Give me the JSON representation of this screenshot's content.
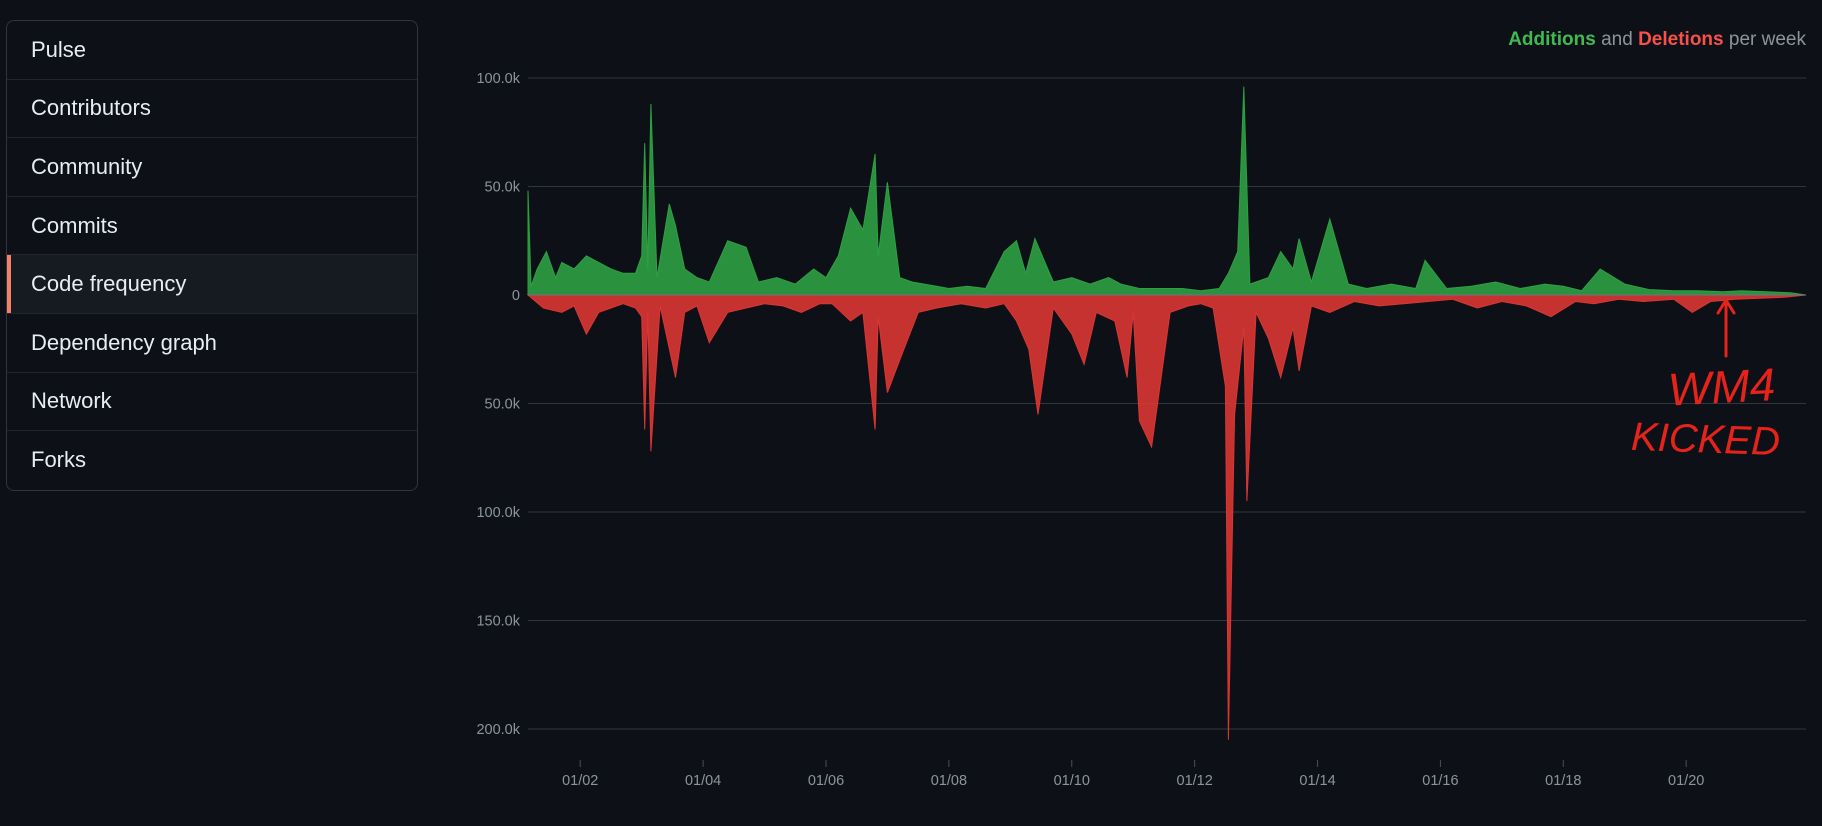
{
  "sidebar": {
    "items": [
      {
        "label": "Pulse",
        "active": false
      },
      {
        "label": "Contributors",
        "active": false
      },
      {
        "label": "Community",
        "active": false
      },
      {
        "label": "Commits",
        "active": false
      },
      {
        "label": "Code frequency",
        "active": true
      },
      {
        "label": "Dependency graph",
        "active": false
      },
      {
        "label": "Network",
        "active": false
      },
      {
        "label": "Forks",
        "active": false
      }
    ]
  },
  "legend": {
    "additions_label": "Additions",
    "and_text": "and",
    "deletions_label": "Deletions",
    "suffix": "per week"
  },
  "annotation": {
    "line1": "WM4",
    "line2": "KICKED"
  },
  "colors": {
    "additions": "#2ea043",
    "deletions": "#da3633",
    "annotation": "#e5231b",
    "active_marker": "#f78166"
  },
  "chart_data": {
    "type": "area",
    "title": "",
    "xlabel": "",
    "ylabel": "",
    "ylim": [
      -205000,
      100000
    ],
    "y_ticks": [
      {
        "value": 100000,
        "label": "100.0k"
      },
      {
        "value": 50000,
        "label": "50.0k"
      },
      {
        "value": 0,
        "label": "0"
      },
      {
        "value": -50000,
        "label": "50.0k"
      },
      {
        "value": -100000,
        "label": "100.0k"
      },
      {
        "value": -150000,
        "label": "150.0k"
      },
      {
        "value": -200000,
        "label": "200.0k"
      }
    ],
    "x_ticks": [
      "01/02",
      "01/04",
      "01/06",
      "01/08",
      "01/10",
      "01/12",
      "01/14",
      "01/16",
      "01/18",
      "01/20"
    ],
    "x_range": [
      2001.15,
      2021.95
    ],
    "grid": true,
    "legend_position": "top-right",
    "series": [
      {
        "name": "Additions",
        "x": [
          2001.15,
          2001.2,
          2001.3,
          2001.45,
          2001.6,
          2001.7,
          2001.9,
          2002.1,
          2002.3,
          2002.5,
          2002.7,
          2002.9,
          2003.0,
          2003.05,
          2003.1,
          2003.15,
          2003.25,
          2003.45,
          2003.55,
          2003.7,
          2003.9,
          2004.1,
          2004.4,
          2004.7,
          2004.9,
          2005.2,
          2005.5,
          2005.8,
          2006.0,
          2006.2,
          2006.4,
          2006.6,
          2006.8,
          2006.85,
          2007.0,
          2007.2,
          2007.4,
          2007.6,
          2007.8,
          2008.0,
          2008.3,
          2008.6,
          2008.9,
          2009.1,
          2009.25,
          2009.4,
          2009.7,
          2010.0,
          2010.3,
          2010.6,
          2010.8,
          2011.1,
          2011.5,
          2011.8,
          2012.1,
          2012.4,
          2012.55,
          2012.7,
          2012.8,
          2012.9,
          2013.2,
          2013.4,
          2013.6,
          2013.7,
          2013.9,
          2014.2,
          2014.5,
          2014.8,
          2015.2,
          2015.6,
          2015.75,
          2016.1,
          2016.5,
          2016.9,
          2017.3,
          2017.7,
          2018.0,
          2018.3,
          2018.6,
          2019.0,
          2019.4,
          2019.8,
          2020.2,
          2020.6,
          2020.9,
          2021.3,
          2021.7,
          2021.95
        ],
        "values": [
          48000,
          4000,
          12000,
          20000,
          8000,
          15000,
          12000,
          18000,
          15000,
          12000,
          10000,
          10000,
          18000,
          70000,
          12000,
          88000,
          8000,
          42000,
          32000,
          12000,
          8000,
          6000,
          25000,
          22000,
          6000,
          8000,
          5000,
          12000,
          8000,
          18000,
          40000,
          30000,
          65000,
          18000,
          52000,
          8000,
          6000,
          5000,
          4000,
          3000,
          4000,
          3000,
          20000,
          25000,
          10000,
          26000,
          6000,
          8000,
          5000,
          8000,
          5000,
          3000,
          3000,
          3000,
          2000,
          3000,
          10000,
          20000,
          96000,
          5000,
          8000,
          20000,
          12000,
          26000,
          6000,
          35000,
          5000,
          3000,
          5000,
          3000,
          16000,
          3000,
          4000,
          6000,
          3000,
          5000,
          4000,
          2000,
          12000,
          5000,
          2500,
          2000,
          2000,
          1500,
          2000,
          1500,
          1000,
          0
        ]
      },
      {
        "name": "Deletions",
        "x": [
          2001.15,
          2001.4,
          2001.7,
          2001.9,
          2002.1,
          2002.3,
          2002.5,
          2002.7,
          2002.9,
          2003.0,
          2003.05,
          2003.1,
          2003.15,
          2003.3,
          2003.55,
          2003.7,
          2003.9,
          2004.1,
          2004.4,
          2004.7,
          2005.0,
          2005.3,
          2005.6,
          2005.9,
          2006.1,
          2006.4,
          2006.6,
          2006.8,
          2006.85,
          2007.0,
          2007.2,
          2007.5,
          2007.8,
          2008.2,
          2008.6,
          2008.9,
          2009.1,
          2009.3,
          2009.45,
          2009.7,
          2010.0,
          2010.2,
          2010.4,
          2010.7,
          2010.9,
          2011.0,
          2011.1,
          2011.3,
          2011.6,
          2011.9,
          2012.1,
          2012.3,
          2012.5,
          2012.55,
          2012.65,
          2012.8,
          2012.85,
          2013.0,
          2013.2,
          2013.4,
          2013.6,
          2013.7,
          2013.9,
          2014.2,
          2014.6,
          2015.0,
          2015.4,
          2015.8,
          2016.2,
          2016.6,
          2017.0,
          2017.4,
          2017.8,
          2018.2,
          2018.5,
          2018.9,
          2019.3,
          2019.8,
          2020.1,
          2020.4,
          2020.8,
          2021.2,
          2021.6,
          2021.95
        ],
        "values": [
          0,
          6000,
          8000,
          5000,
          18000,
          8000,
          6000,
          4000,
          6000,
          10000,
          62000,
          8000,
          72000,
          5000,
          38000,
          8000,
          5000,
          22000,
          8000,
          6000,
          4000,
          5000,
          8000,
          4000,
          4000,
          12000,
          8000,
          62000,
          10000,
          45000,
          30000,
          8000,
          6000,
          4000,
          6000,
          4000,
          12000,
          25000,
          55000,
          6000,
          18000,
          32000,
          8000,
          12000,
          38000,
          8000,
          58000,
          70000,
          8000,
          5000,
          4000,
          6000,
          42000,
          205000,
          55000,
          15000,
          95000,
          8000,
          20000,
          38000,
          15000,
          35000,
          5000,
          8000,
          3000,
          5000,
          4000,
          3000,
          2000,
          6000,
          3000,
          5000,
          10000,
          3000,
          4000,
          2000,
          3000,
          2000,
          8000,
          3000,
          2000,
          1500,
          1000,
          0
        ]
      }
    ]
  }
}
